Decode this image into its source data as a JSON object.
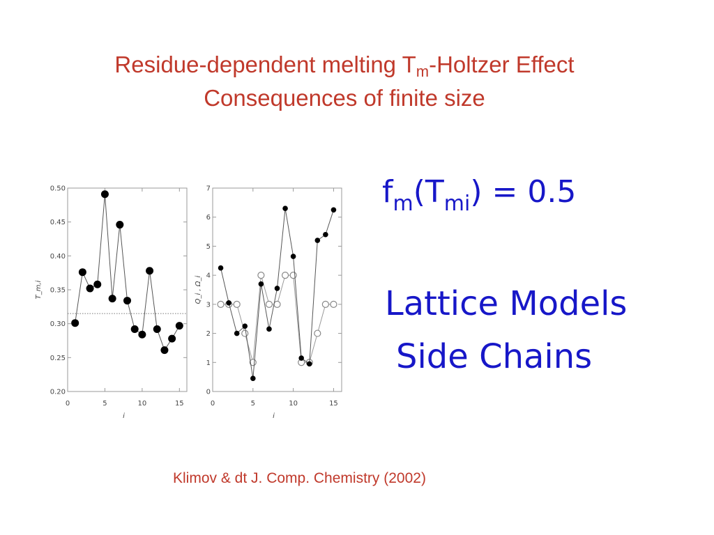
{
  "title": {
    "line1_prefix": "Residue-dependent melting T",
    "line1_sub": "m",
    "line1_suffix": "-Holtzer Effect",
    "line2": "Consequences of finite size"
  },
  "equation": {
    "f": "f",
    "f_sub": "m",
    "mid": "(T",
    "t_sub": "mi",
    "rest": ") = 0.5"
  },
  "bullets": {
    "line1": "Lattice Models",
    "line2": "Side Chains"
  },
  "citation": "Klimov & dt J. Comp. Chemistry (2002)",
  "chart_data": [
    {
      "type": "line",
      "xlabel": "i",
      "ylabel": "T_m,i",
      "xlim": [
        0,
        16
      ],
      "ylim": [
        0.2,
        0.5
      ],
      "xticks": [
        "0",
        "5",
        "10",
        "15"
      ],
      "yticks": [
        "0.20",
        "0.25",
        "0.30",
        "0.35",
        "0.40",
        "0.45",
        "0.50"
      ],
      "reference_line": 0.315,
      "series": [
        {
          "marker": "filled-circle",
          "x": [
            1,
            2,
            3,
            4,
            5,
            6,
            7,
            8,
            9,
            10,
            11,
            12,
            13,
            14,
            15
          ],
          "y": [
            0.301,
            0.376,
            0.352,
            0.358,
            0.491,
            0.337,
            0.446,
            0.334,
            0.292,
            0.284,
            0.378,
            0.292,
            0.261,
            0.278,
            0.297
          ]
        }
      ]
    },
    {
      "type": "line",
      "xlabel": "i",
      "ylabel": "Q_i , Ω_i",
      "xlim": [
        0,
        16
      ],
      "ylim": [
        0,
        7
      ],
      "xticks": [
        "0",
        "5",
        "10",
        "15"
      ],
      "yticks": [
        "0",
        "1",
        "2",
        "3",
        "4",
        "5",
        "6",
        "7"
      ],
      "series": [
        {
          "marker": "filled-circle",
          "color": "#000000",
          "x": [
            1,
            2,
            3,
            4,
            5,
            6,
            7,
            8,
            9,
            10,
            11,
            12,
            13,
            14,
            15
          ],
          "y": [
            4.25,
            3.05,
            2.0,
            2.25,
            0.45,
            3.7,
            2.15,
            3.55,
            6.3,
            4.65,
            1.15,
            0.95,
            5.2,
            5.4,
            6.25
          ]
        },
        {
          "marker": "open-circle",
          "color": "#888888",
          "x": [
            1,
            2,
            3,
            4,
            5,
            6,
            7,
            8,
            9,
            10,
            11,
            12,
            13,
            14,
            15
          ],
          "y": [
            3,
            3,
            3,
            2,
            1,
            4,
            3,
            3,
            4,
            4,
            1,
            1,
            2,
            3,
            3
          ]
        }
      ]
    }
  ]
}
